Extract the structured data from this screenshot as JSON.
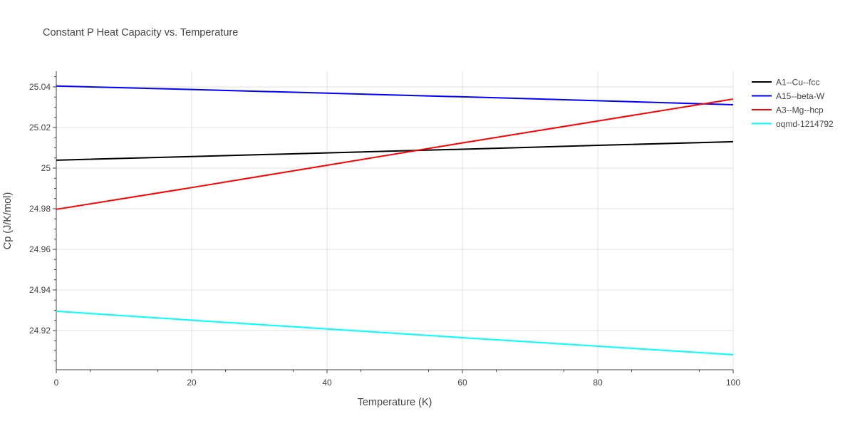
{
  "chart_data": {
    "type": "line",
    "title": "Constant P Heat Capacity vs. Temperature",
    "xlabel": "Temperature (K)",
    "ylabel": "Cp (J/K/mol)",
    "xlim": [
      0,
      100
    ],
    "ylim": [
      24.9007,
      25.0477
    ],
    "xticks": [
      0,
      20,
      40,
      60,
      80,
      100
    ],
    "xtick_labels": [
      "0",
      "20",
      "40",
      "60",
      "80",
      "100"
    ],
    "yticks": [
      24.92,
      24.94,
      24.96,
      24.98,
      25,
      25.02,
      25.04
    ],
    "ytick_labels": [
      "24.92",
      "24.94",
      "24.96",
      "24.98",
      "25",
      "25.02",
      "25.04"
    ],
    "grid": true,
    "legend_position": "top-right",
    "x": [
      0,
      20,
      40,
      60,
      80,
      100
    ],
    "series": [
      {
        "name": "A1--Cu--fcc",
        "color": "#000000",
        "values": [
          25.0039,
          25.0057,
          25.0075,
          25.0093,
          25.0112,
          25.013
        ]
      },
      {
        "name": "A15--beta-W",
        "color": "#0000ff",
        "values": [
          25.0404,
          25.0387,
          25.0369,
          25.0351,
          25.0332,
          25.0312
        ]
      },
      {
        "name": "A3--Mg--hcp",
        "color": "#ff0000",
        "values": [
          24.9797,
          24.9904,
          25.0014,
          25.0124,
          25.0232,
          25.034
        ]
      },
      {
        "name": "oqmd-1214792",
        "color": "#00ffff",
        "values": [
          24.9295,
          24.9251,
          24.9208,
          24.9165,
          24.9123,
          24.9081
        ]
      }
    ]
  }
}
